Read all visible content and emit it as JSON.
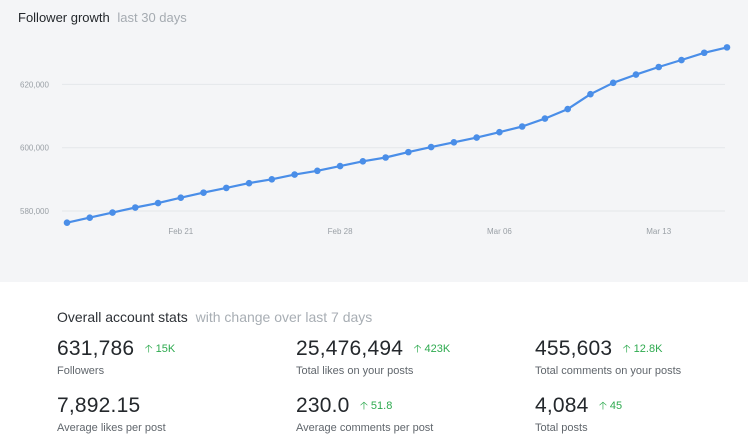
{
  "chart": {
    "title": "Follower growth",
    "subtitle": "last 30 days"
  },
  "chart_data": {
    "type": "line",
    "title": "Follower growth",
    "subtitle": "last 30 days",
    "xlabel": "",
    "ylabel": "",
    "x_tick_labels": [
      "Feb 21",
      "Feb 28",
      "Mar 06",
      "Mar 13"
    ],
    "x_tick_day_index": [
      5,
      12,
      19,
      26
    ],
    "y_ticks": [
      580000,
      600000,
      620000
    ],
    "y_tick_labels": [
      "580,000",
      "600,000",
      "620,000"
    ],
    "ylim": [
      573000,
      634000
    ],
    "grid": true,
    "series": [
      {
        "values": [
          576300,
          577900,
          579500,
          581100,
          582500,
          584200,
          585800,
          587300,
          588800,
          590000,
          591500,
          592700,
          594200,
          595700,
          596900,
          598600,
          600200,
          601700,
          603200,
          604900,
          606700,
          609200,
          612200,
          616900,
          620500,
          623100,
          625500,
          627700,
          630000,
          631700
        ],
        "color": "#4a8ee8"
      }
    ]
  },
  "stats": {
    "title": "Overall account stats",
    "subtitle": "with change over last 7 days",
    "items": [
      {
        "value": "631,786",
        "delta": "15K",
        "label": "Followers"
      },
      {
        "value": "25,476,494",
        "delta": "423K",
        "label": "Total likes on your posts"
      },
      {
        "value": "455,603",
        "delta": "12.8K",
        "label": "Total comments on your posts"
      },
      {
        "value": "7,892.15",
        "delta": "",
        "label": "Average likes per post"
      },
      {
        "value": "230.0",
        "delta": "51.8",
        "label": "Average comments per post"
      },
      {
        "value": "4,084",
        "delta": "45",
        "label": "Total posts"
      }
    ]
  },
  "colors": {
    "chart_background": "#f4f5f7",
    "line": "#4a8ee8",
    "grid": "#e4e7ea",
    "delta_positive": "#2eaa4f"
  }
}
